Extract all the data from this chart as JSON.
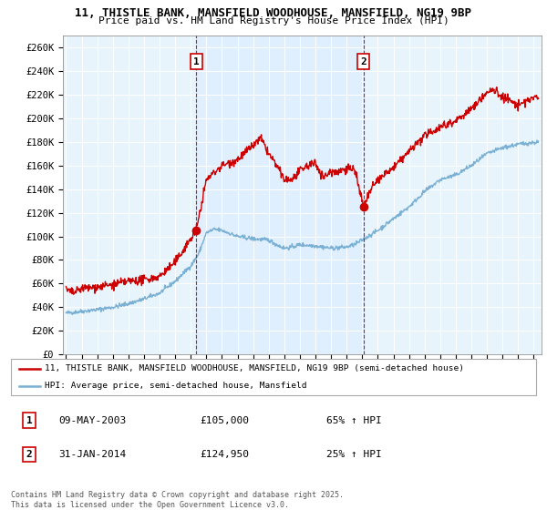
{
  "title1": "11, THISTLE BANK, MANSFIELD WOODHOUSE, MANSFIELD, NG19 9BP",
  "title2": "Price paid vs. HM Land Registry's House Price Index (HPI)",
  "ylim": [
    0,
    270000
  ],
  "yticks": [
    0,
    20000,
    40000,
    60000,
    80000,
    100000,
    120000,
    140000,
    160000,
    180000,
    200000,
    220000,
    240000,
    260000
  ],
  "ytick_labels": [
    "£0",
    "£20K",
    "£40K",
    "£60K",
    "£80K",
    "£100K",
    "£120K",
    "£140K",
    "£160K",
    "£180K",
    "£200K",
    "£220K",
    "£240K",
    "£260K"
  ],
  "xlim_start": 1994.8,
  "xlim_end": 2025.5,
  "sale1_x": 2003.35,
  "sale1_y": 105000,
  "sale2_x": 2014.08,
  "sale2_y": 124950,
  "vline1_x": 2003.35,
  "vline2_x": 2014.08,
  "red_color": "#cc0000",
  "blue_color": "#7ab0d4",
  "shade_color": "#ddeeff",
  "bg_color": "#e8f4fb",
  "legend_label_red": "11, THISTLE BANK, MANSFIELD WOODHOUSE, MANSFIELD, NG19 9BP (semi-detached house)",
  "legend_label_blue": "HPI: Average price, semi-detached house, Mansfield",
  "sale1_date": "09-MAY-2003",
  "sale1_price": "£105,000",
  "sale1_hpi": "65% ↑ HPI",
  "sale2_date": "31-JAN-2014",
  "sale2_price": "£124,950",
  "sale2_hpi": "25% ↑ HPI",
  "footer": "Contains HM Land Registry data © Crown copyright and database right 2025.\nThis data is licensed under the Open Government Licence v3.0."
}
